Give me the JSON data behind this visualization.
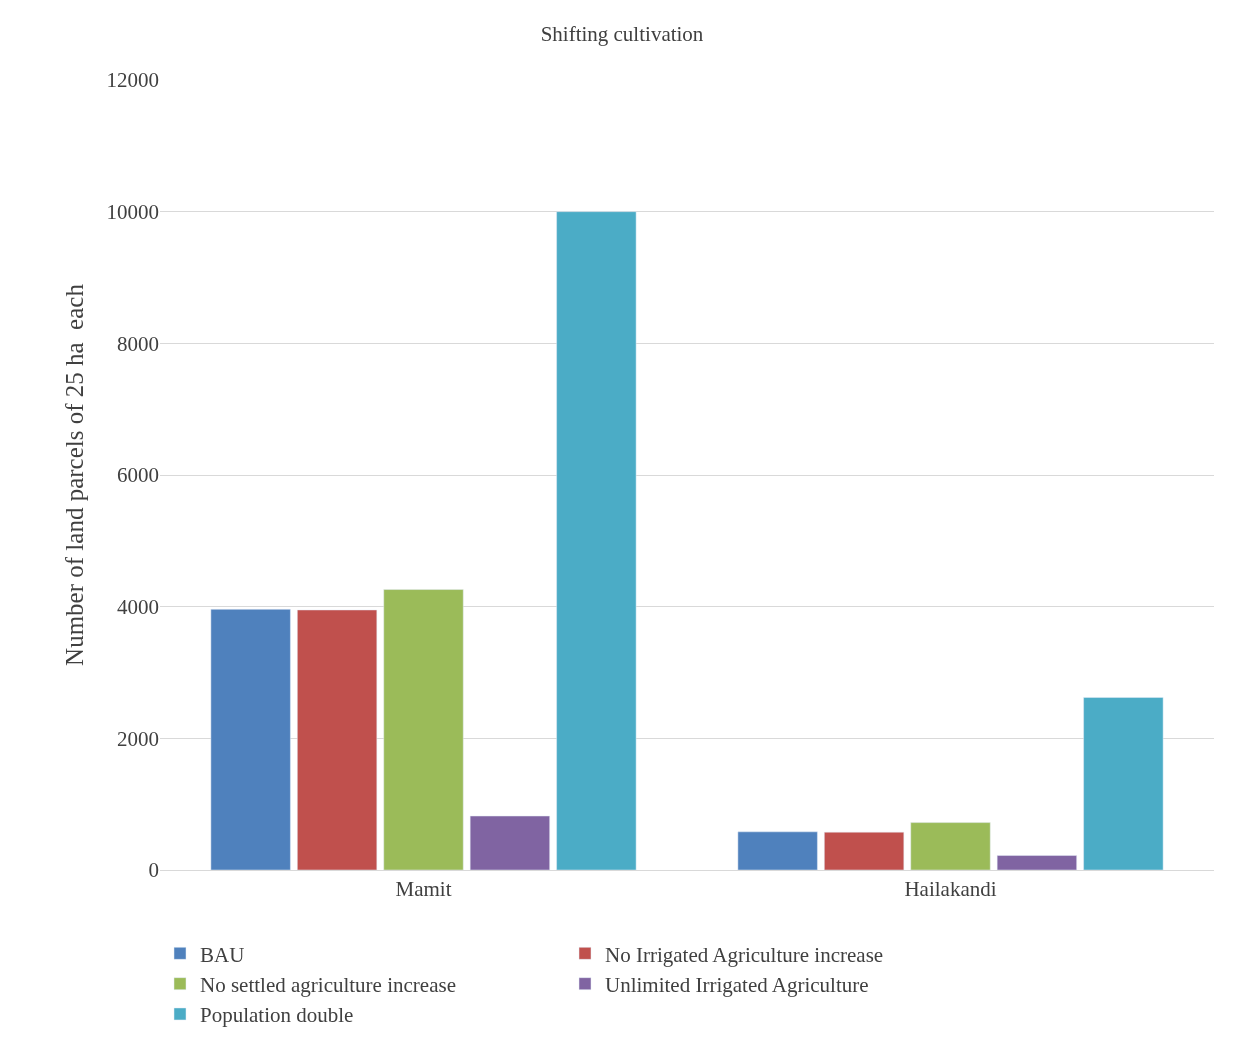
{
  "chart_data": {
    "type": "bar",
    "title": "Shifting cultivation",
    "ylabel": "Number of land parcels of 25 ha  each",
    "categories": [
      "Mamit",
      "Hailakandi"
    ],
    "series": [
      {
        "name": "BAU",
        "color": "#4f81bd",
        "values": [
          3960,
          580
        ]
      },
      {
        "name": "No Irrigated Agriculture increase",
        "color": "#c0504d",
        "values": [
          3950,
          575
        ]
      },
      {
        "name": "No settled agriculture increase",
        "color": "#9bbb59",
        "values": [
          4260,
          720
        ]
      },
      {
        "name": "Unlimited Irrigated Agriculture",
        "color": "#8064a2",
        "values": [
          820,
          220
        ]
      },
      {
        "name": "Population double",
        "color": "#4bacc6",
        "values": [
          10000,
          2620
        ]
      }
    ],
    "ylim": [
      0,
      12000
    ],
    "yticks": [
      0,
      2000,
      4000,
      6000,
      8000,
      10000,
      12000
    ],
    "grid": "y",
    "legend": "bottom"
  }
}
